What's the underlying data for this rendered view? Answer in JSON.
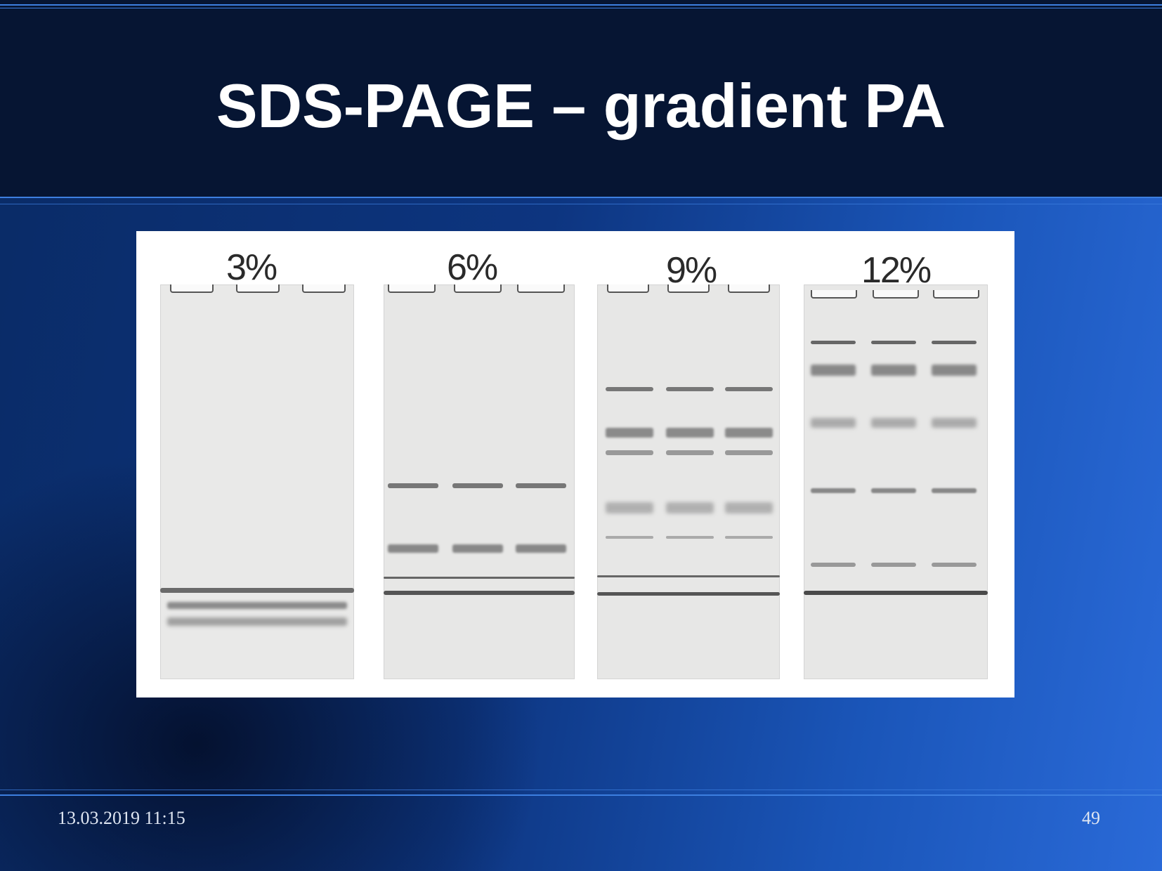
{
  "slide": {
    "title": "SDS-PAGE – gradient PA",
    "date": "13.03.2019 11:15",
    "page_number": "49"
  },
  "figure": {
    "gel_labels": [
      "3%",
      "6%",
      "9%",
      "12%"
    ]
  },
  "colors": {
    "header_bg": "#061533",
    "accent_line": "#3d7fe0",
    "body_bg": "#0d3580"
  }
}
